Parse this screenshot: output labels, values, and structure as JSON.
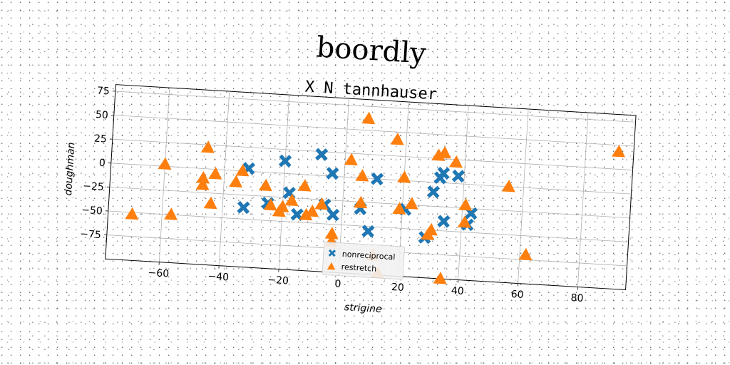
{
  "chart_data": {
    "type": "scatter",
    "title": "boordly",
    "subtitle": "X N tannhauser",
    "xlabel": "strigine",
    "ylabel": "doughman",
    "xlim": [
      -78,
      96
    ],
    "ylim": [
      -100,
      82
    ],
    "xticks": [
      -60,
      -40,
      -20,
      0,
      20,
      40,
      60,
      80
    ],
    "yticks": [
      -75,
      -50,
      -25,
      0,
      25,
      50,
      75
    ],
    "grid": true,
    "legend_position": "bottom-center",
    "series": [
      {
        "name": "nonreciprocal",
        "marker": "x",
        "color": "#1f77b4",
        "points": [
          [
            -32,
            3
          ],
          [
            -20,
            13
          ],
          [
            -8,
            22
          ],
          [
            -4,
            3
          ],
          [
            11,
            0
          ],
          [
            -33,
            -38
          ],
          [
            -25,
            -32
          ],
          [
            -18,
            -20
          ],
          [
            -15,
            -42
          ],
          [
            -6,
            -30
          ],
          [
            -3,
            -40
          ],
          [
            6,
            -32
          ],
          [
            9,
            -55
          ],
          [
            21,
            -30
          ],
          [
            28,
            -58
          ],
          [
            30,
            -10
          ],
          [
            32,
            5
          ],
          [
            34,
            -40
          ],
          [
            38,
            8
          ],
          [
            43,
            -30
          ],
          [
            42,
            -42
          ],
          [
            33,
            10
          ]
        ]
      },
      {
        "name": "restretch",
        "marker": "^",
        "color": "#ff7f0e",
        "points": [
          [
            -70,
            -52
          ],
          [
            -57,
            -50
          ],
          [
            -60,
            2
          ],
          [
            -47,
            -10
          ],
          [
            -47,
            -17
          ],
          [
            -46,
            22
          ],
          [
            -43,
            -5
          ],
          [
            -44,
            -36
          ],
          [
            -36,
            -12
          ],
          [
            -34,
            0
          ],
          [
            -26,
            -14
          ],
          [
            -24,
            -34
          ],
          [
            -21,
            -40
          ],
          [
            -20,
            -35
          ],
          [
            -17,
            -28
          ],
          [
            -13,
            -12
          ],
          [
            -12,
            -42
          ],
          [
            -10,
            -38
          ],
          [
            -7,
            -30
          ],
          [
            -3,
            -60
          ],
          [
            -3,
            -68
          ],
          [
            2,
            18
          ],
          [
            6,
            2
          ],
          [
            6,
            -26
          ],
          [
            7,
            62
          ],
          [
            11,
            -80
          ],
          [
            13,
            -98
          ],
          [
            17,
            42
          ],
          [
            19,
            -30
          ],
          [
            20,
            3
          ],
          [
            23,
            -24
          ],
          [
            29,
            -55
          ],
          [
            30,
            -50
          ],
          [
            31,
            28
          ],
          [
            33,
            31
          ],
          [
            34,
            -100
          ],
          [
            37,
            22
          ],
          [
            41,
            -22
          ],
          [
            41,
            -40
          ],
          [
            55,
            0
          ],
          [
            62,
            -70
          ],
          [
            91,
            43
          ]
        ]
      }
    ]
  }
}
